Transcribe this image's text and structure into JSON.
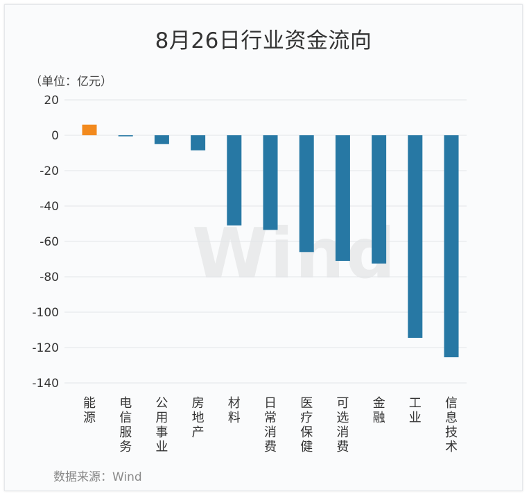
{
  "chart_data": {
    "type": "bar",
    "title": "8月26日行业资金流向",
    "unit": "（单位：亿元）",
    "source": "数据来源：Wind",
    "watermark": "Wind",
    "categories": [
      "能源",
      "电信服务",
      "公用事业",
      "房地产",
      "材料",
      "日常消费",
      "医疗保健",
      "可选消费",
      "金融",
      "工业",
      "信息技术"
    ],
    "values": [
      6.0,
      -0.6,
      -5.0,
      -8.5,
      -51.0,
      -53.5,
      -66.0,
      -71.0,
      -72.5,
      -114.5,
      -125.5
    ],
    "ylim": [
      -140,
      20
    ],
    "yticks": [
      20,
      0,
      -20,
      -40,
      -60,
      -80,
      -100,
      -120,
      -140
    ],
    "grid": true,
    "colors": {
      "positive": "#f28a1e",
      "negative": "#2778a4"
    }
  }
}
